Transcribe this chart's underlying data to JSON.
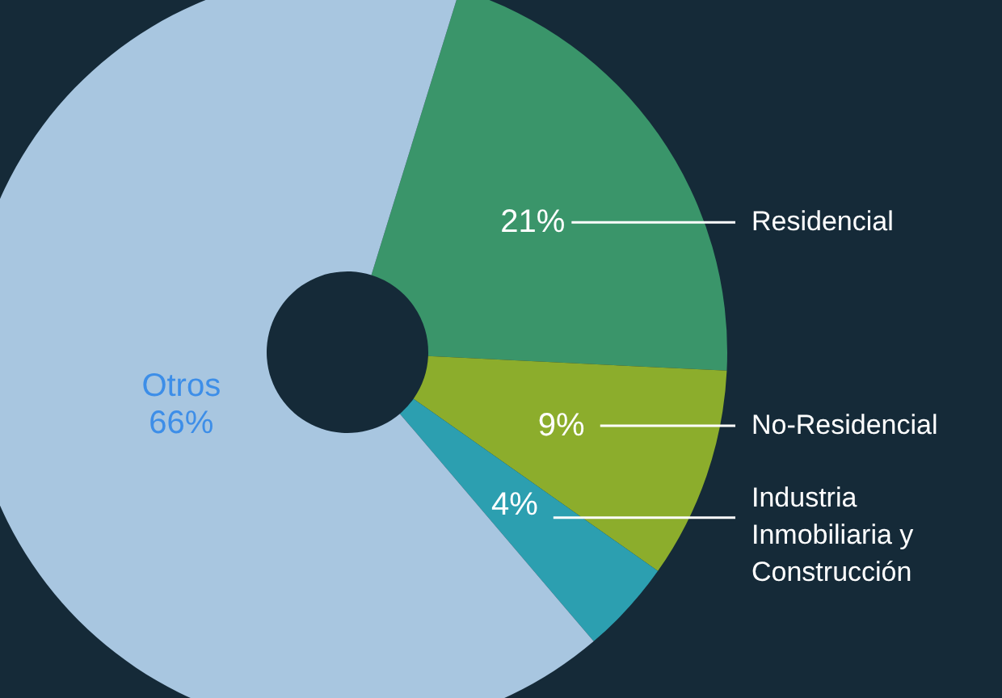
{
  "chart_data": {
    "type": "donut",
    "categories": [
      "Residencial",
      "No-Residencial",
      "Industria\nInmobiliaria y\nConstrucción",
      "Otros"
    ],
    "values": [
      21,
      9,
      4,
      66
    ],
    "value_labels": [
      "21%",
      "9%",
      "4%",
      "66%"
    ],
    "colors": [
      "#3a956a",
      "#8cad2c",
      "#2c9fb0",
      "#a8c6e0"
    ]
  }
}
